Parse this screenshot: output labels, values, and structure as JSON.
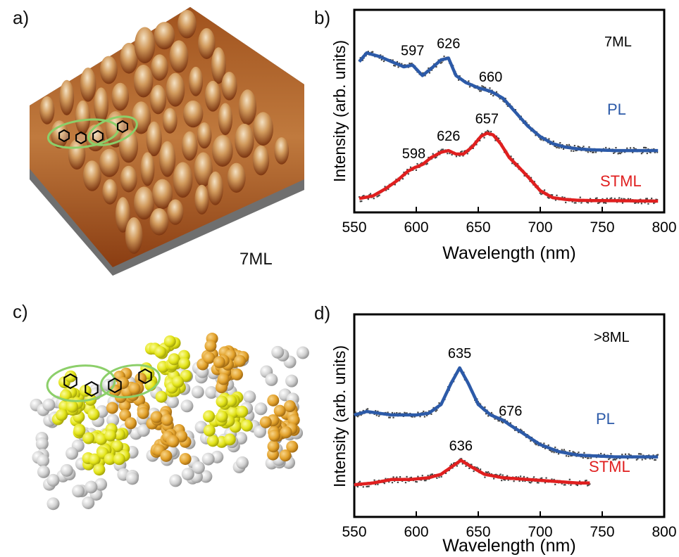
{
  "panels": {
    "a": {
      "label": "a)",
      "caption": "7ML"
    },
    "b": {
      "label": "b)"
    },
    "c": {
      "label": "c)"
    },
    "d": {
      "label": "d)"
    }
  },
  "colors": {
    "pl": "#2c5aa8",
    "stml": "#e01f1f",
    "raw": "#444444",
    "afm_dark": "#6b2f0f",
    "afm_light": "#e9cfa8",
    "ellipse": "#8ccf6a",
    "mol_yellow": "#e3e418",
    "mol_orange": "#e2a12a",
    "mol_gray": "#c9c9c9"
  },
  "chart_data": [
    {
      "type": "line",
      "panel": "b",
      "xlabel": "Wavelength (nm)",
      "ylabel": "Intensity (arb. units)",
      "xlim": [
        550,
        800
      ],
      "xticks": [
        550,
        600,
        650,
        700,
        750,
        800
      ],
      "y_ticks_labeled": false,
      "sample_label": "7ML",
      "legend_placement": "right, next to each curve",
      "series": [
        {
          "name": "PL",
          "color": "#2c5aa8",
          "x": [
            554,
            560,
            570,
            580,
            590,
            597,
            605,
            612,
            620,
            626,
            632,
            640,
            650,
            660,
            670,
            680,
            690,
            700,
            710,
            720,
            730,
            740,
            760,
            780,
            795
          ],
          "y": [
            0.8,
            0.85,
            0.83,
            0.8,
            0.77,
            0.78,
            0.72,
            0.76,
            0.81,
            0.82,
            0.72,
            0.68,
            0.65,
            0.63,
            0.59,
            0.51,
            0.43,
            0.37,
            0.33,
            0.31,
            0.3,
            0.295,
            0.29,
            0.29,
            0.29
          ],
          "peak_labels": [
            {
              "x": 597,
              "text": "597"
            },
            {
              "x": 626,
              "text": "626"
            },
            {
              "x": 660,
              "text": "660"
            }
          ]
        },
        {
          "name": "STML",
          "color": "#e01f1f",
          "x": [
            554,
            565,
            575,
            585,
            593,
            598,
            605,
            612,
            620,
            626,
            632,
            638,
            645,
            652,
            657,
            662,
            668,
            675,
            682,
            690,
            700,
            710,
            720,
            730,
            745,
            770,
            795
          ],
          "y": [
            0.015,
            0.03,
            0.07,
            0.12,
            0.17,
            0.19,
            0.21,
            0.25,
            0.28,
            0.29,
            0.27,
            0.27,
            0.31,
            0.37,
            0.39,
            0.38,
            0.33,
            0.25,
            0.2,
            0.14,
            0.06,
            0.02,
            0.01,
            0.005,
            0.003,
            0.002,
            0.0
          ],
          "peak_labels": [
            {
              "x": 598,
              "text": "598"
            },
            {
              "x": 626,
              "text": "626"
            },
            {
              "x": 657,
              "text": "657"
            }
          ]
        }
      ]
    },
    {
      "type": "line",
      "panel": "d",
      "xlabel": "Wavelength (nm)",
      "ylabel": "Intensity (arb. units)",
      "xlim": [
        550,
        800
      ],
      "xticks": [
        550,
        600,
        650,
        700,
        750,
        800
      ],
      "y_ticks_labeled": false,
      "sample_label": ">8ML",
      "legend_placement": "right, next to each curve",
      "series": [
        {
          "name": "PL",
          "color": "#2c5aa8",
          "x": [
            550,
            560,
            570,
            580,
            590,
            600,
            610,
            620,
            628,
            635,
            642,
            650,
            660,
            670,
            676,
            685,
            700,
            715,
            730,
            745,
            760,
            780,
            795
          ],
          "y": [
            0.52,
            0.54,
            0.53,
            0.52,
            0.52,
            0.52,
            0.53,
            0.58,
            0.7,
            0.79,
            0.7,
            0.58,
            0.52,
            0.49,
            0.46,
            0.42,
            0.35,
            0.31,
            0.29,
            0.285,
            0.28,
            0.28,
            0.28
          ],
          "peak_labels": [
            {
              "x": 635,
              "text": "635"
            },
            {
              "x": 676,
              "text": "676"
            }
          ]
        },
        {
          "name": "STML",
          "color": "#e01f1f",
          "x": [
            550,
            565,
            580,
            595,
            610,
            620,
            628,
            636,
            645,
            655,
            670,
            690,
            710,
            730,
            740
          ],
          "y": [
            0.12,
            0.13,
            0.15,
            0.15,
            0.16,
            0.18,
            0.22,
            0.26,
            0.22,
            0.18,
            0.16,
            0.15,
            0.14,
            0.13,
            0.13
          ],
          "peak_labels": [
            {
              "x": 636,
              "text": "636"
            }
          ]
        }
      ]
    }
  ]
}
